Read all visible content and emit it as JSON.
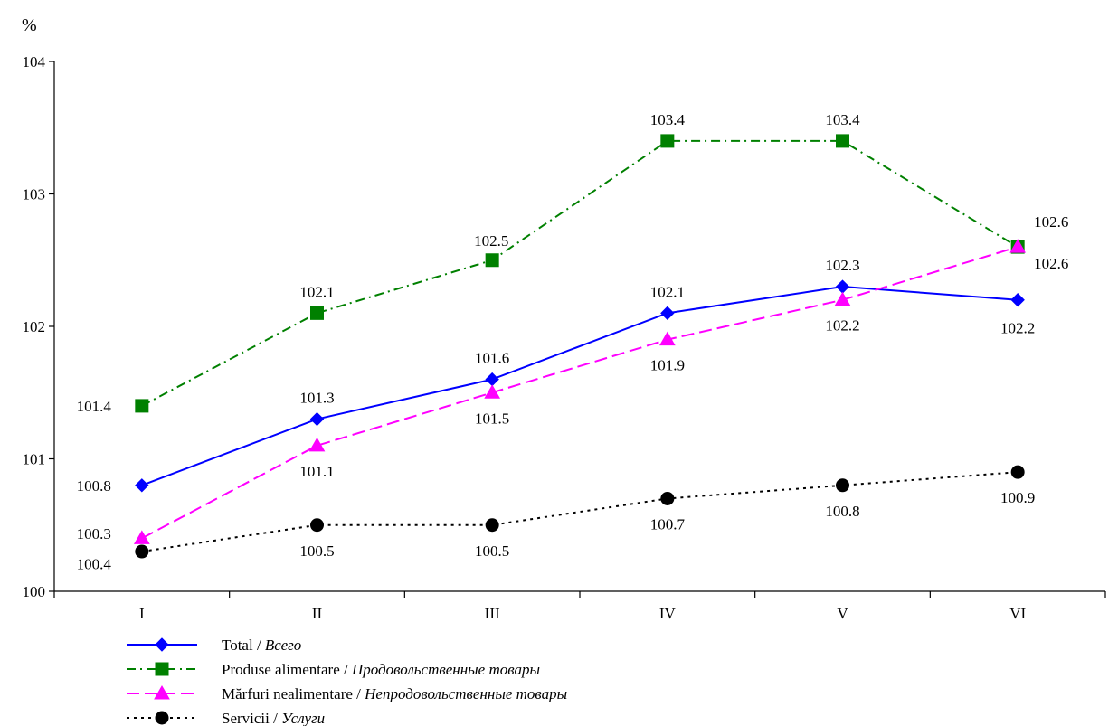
{
  "chart_data": {
    "type": "line",
    "title": "",
    "xlabel": "",
    "ylabel": "%",
    "ylim": [
      100,
      104
    ],
    "yticks": [
      "100",
      "101",
      "102",
      "103",
      "104"
    ],
    "categories": [
      "I",
      "II",
      "III",
      "IV",
      "V",
      "VI"
    ],
    "grid": false,
    "legend_position": "bottom-left",
    "series": [
      {
        "name": "Total / ",
        "name_ru": "Всего",
        "color": "#0000ff",
        "marker": "diamond",
        "line_style": "solid",
        "values": [
          100.8,
          101.3,
          101.6,
          102.1,
          102.3,
          102.2
        ],
        "labels": [
          "100.8",
          "101.3",
          "101.6",
          "102.1",
          "102.3",
          "102.2"
        ]
      },
      {
        "name": "Produse alimentare / ",
        "name_ru": "Продовольственные товары",
        "color": "#008000",
        "marker": "square",
        "line_style": "dash-dot",
        "values": [
          101.4,
          102.1,
          102.5,
          103.4,
          103.4,
          102.6
        ],
        "labels": [
          "101.4",
          "102.1",
          "102.5",
          "103.4",
          "103.4",
          "102.6"
        ]
      },
      {
        "name": "Mărfuri nealimentare / ",
        "name_ru": "Непродовольственные товары",
        "color": "#ff00ff",
        "marker": "triangle",
        "line_style": "dashed",
        "values": [
          100.4,
          101.1,
          101.5,
          101.9,
          102.2,
          102.6
        ],
        "labels": [
          "100.4",
          "101.1",
          "101.5",
          "101.9",
          "102.2",
          "102.6"
        ]
      },
      {
        "name": "Servicii / ",
        "name_ru": "Услуги",
        "color": "#000000",
        "marker": "circle",
        "line_style": "dotted",
        "values": [
          100.3,
          100.5,
          100.5,
          100.7,
          100.8,
          100.9
        ],
        "labels": [
          "100.3",
          "100.5",
          "100.5",
          "100.7",
          "100.8",
          "100.9"
        ]
      }
    ]
  }
}
